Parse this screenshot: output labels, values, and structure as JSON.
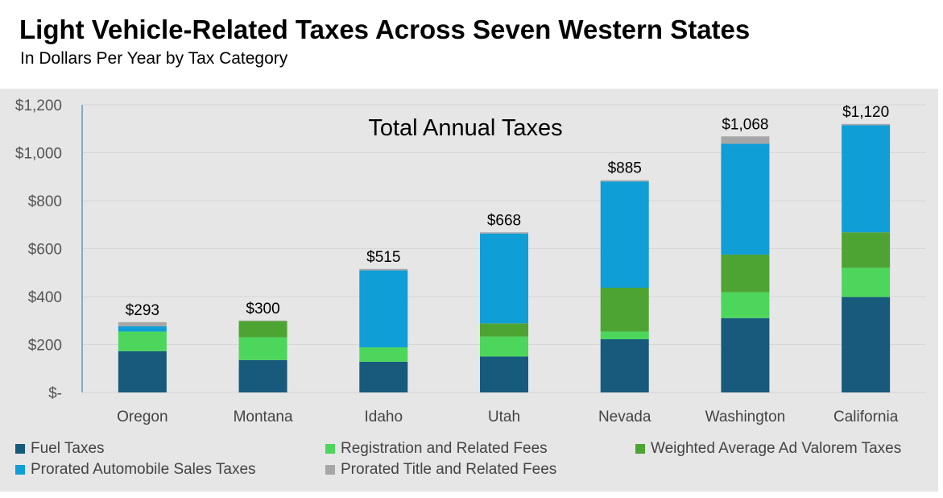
{
  "title": "Light Vehicle-Related Taxes Across Seven Western States",
  "subtitle": "In Dollars Per Year by Tax Category",
  "colors": {
    "fuel": "#175a7c",
    "registration": "#4cd65c",
    "ad_valorem": "#4ea433",
    "sales": "#109ed6",
    "title_fees": "#a6a6a6",
    "panel_bg": "#e6e6e6"
  },
  "chart_data": {
    "type": "bar",
    "stacked": true,
    "title": "Total Annual Taxes",
    "categories": [
      "Oregon",
      "Montana",
      "Idaho",
      "Utah",
      "Nevada",
      "Washington",
      "California"
    ],
    "series": [
      {
        "name": "Fuel Taxes",
        "color": "#175a7c",
        "values": [
          172,
          135,
          128,
          150,
          222,
          310,
          398
        ]
      },
      {
        "name": "Registration and Related Fees",
        "color": "#4cd65c",
        "values": [
          82,
          95,
          60,
          83,
          32,
          108,
          122
        ]
      },
      {
        "name": "Weighted Average Ad Valorem Taxes",
        "color": "#4ea433",
        "values": [
          0,
          68,
          0,
          55,
          183,
          157,
          148
        ]
      },
      {
        "name": "Prorated Automobile Sales Taxes",
        "color": "#109ed6",
        "values": [
          22,
          0,
          321,
          375,
          443,
          462,
          447
        ]
      },
      {
        "name": "Prorated Title and Related Fees",
        "color": "#a6a6a6",
        "values": [
          17,
          2,
          6,
          5,
          5,
          31,
          5
        ]
      }
    ],
    "totals": [
      293,
      300,
      515,
      668,
      885,
      1068,
      1120
    ],
    "total_labels": [
      "$293",
      "$300",
      "$515",
      "$668",
      "$885",
      "$1,068",
      "$1,120"
    ],
    "ylim": [
      0,
      1200
    ],
    "yticks": [
      0,
      200,
      400,
      600,
      800,
      1000,
      1200
    ],
    "ytick_labels": [
      "$-",
      "$200",
      "$400",
      "$600",
      "$800",
      "$1,000",
      "$1,200"
    ],
    "grid": true,
    "legend": "bottom"
  },
  "legend": {
    "row1": [
      "Fuel Taxes",
      "Registration and Related Fees",
      "Weighted Average Ad Valorem Taxes"
    ],
    "row2": [
      "Prorated Automobile Sales Taxes",
      "Prorated Title and Related Fees"
    ]
  }
}
